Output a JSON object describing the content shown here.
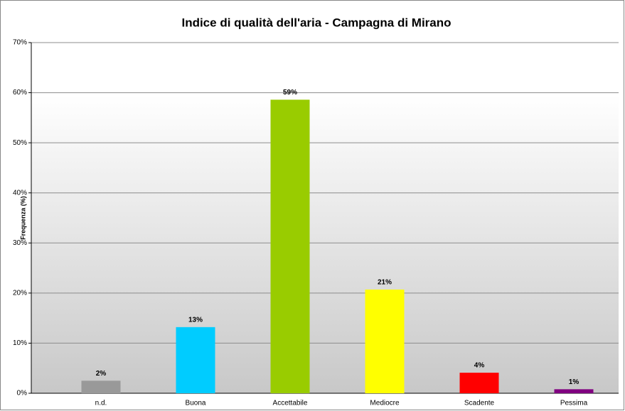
{
  "chart_data": {
    "type": "bar",
    "title": "Indice di qualità dell'aria - Campagna di Mirano",
    "y_label": "Frequenza (%)",
    "categories": [
      "n.d.",
      "Buona",
      "Accettabile",
      "Mediocre",
      "Scadente",
      "Pessima"
    ],
    "values": [
      2.5,
      13.2,
      58.6,
      20.7,
      4.1,
      0.8
    ],
    "value_labels": [
      "2%",
      "13%",
      "59%",
      "21%",
      "4%",
      "1%"
    ],
    "colors": [
      "#999999",
      "#00ccff",
      "#99cc00",
      "#ffff00",
      "#ff0000",
      "#800080"
    ],
    "ylim": [
      0,
      70
    ],
    "yticks": [
      {
        "value": 0,
        "label": "0%"
      },
      {
        "value": 10,
        "label": "10%"
      },
      {
        "value": 20,
        "label": "20%"
      },
      {
        "value": 30,
        "label": "30%"
      },
      {
        "value": 40,
        "label": "40%"
      },
      {
        "value": 50,
        "label": "50%"
      },
      {
        "value": 60,
        "label": "60%"
      },
      {
        "value": 70,
        "label": "70%"
      }
    ],
    "grid": true
  }
}
